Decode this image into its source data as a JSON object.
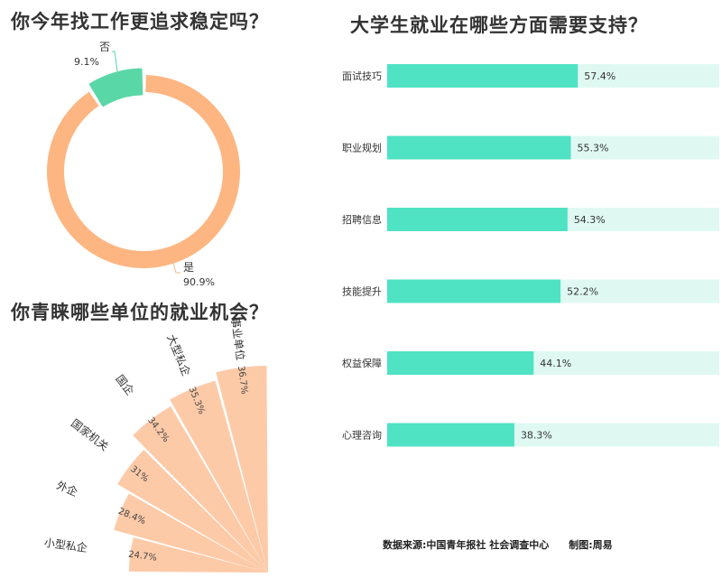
{
  "titles": {
    "donut": "你今年找工作更追求稳定吗？",
    "bars": "大学生就业在哪些方面需要支持？",
    "polar": "你青睐哪些单位的就业机会？"
  },
  "source": "数据来源:中国青年报社 社会调查中心",
  "author": "制图:周易",
  "colors": {
    "orange": "#fdb682",
    "green": "#5ad7a7",
    "teal": "#4fe2c3",
    "track": "#dff9f2",
    "peach": "#fdcaa8"
  },
  "chart_data": [
    {
      "type": "pie",
      "donut": true,
      "title": "你今年找工作更追求稳定吗？",
      "slices": [
        {
          "label": "是",
          "value": 90.9,
          "display": "90.9%"
        },
        {
          "label": "否",
          "value": 9.1,
          "display": "9.1%"
        }
      ]
    },
    {
      "type": "bar",
      "orientation": "horizontal",
      "title": "大学生就业在哪些方面需要支持？",
      "xlim": [
        0,
        100
      ],
      "categories": [
        "面试技巧",
        "职业规划",
        "招聘信息",
        "技能提升",
        "权益保障",
        "心理咨询"
      ],
      "values": [
        57.4,
        55.3,
        54.3,
        52.2,
        44.1,
        38.3
      ],
      "labels": [
        "57.4%",
        "55.3%",
        "54.3%",
        "52.2%",
        "44.1%",
        "38.3%"
      ]
    },
    {
      "type": "bar",
      "polar": true,
      "title": "你青睐哪些单位的就业机会？",
      "categories": [
        "小型私企",
        "外企",
        "国家机关",
        "国企",
        "大型私企",
        "事业单位"
      ],
      "values": [
        24.7,
        28.4,
        31,
        34.2,
        35.3,
        36.7
      ],
      "labels": [
        "24.7%",
        "28.4%",
        "31%",
        "34.2%",
        "35.3%",
        "36.7%"
      ]
    }
  ]
}
